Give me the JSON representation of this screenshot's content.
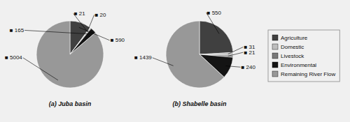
{
  "chart_data": [
    {
      "type": "pie",
      "title": "(a)  Juba basin",
      "values": [
        590,
        20,
        21,
        165,
        5004
      ],
      "value_labels": [
        "■ 590",
        "■ 20",
        "■ 21",
        "■ 165",
        "■ 5004"
      ],
      "colors": [
        "#404040",
        "#bebebe",
        "#787878",
        "#141414",
        "#989898"
      ],
      "data_labels": true
    },
    {
      "type": "pie",
      "title": "(b)  Shabelle basin",
      "categories": [
        "Agriculture",
        "Domestic",
        "Livestock",
        "Environmental",
        "Remaining River Flow"
      ],
      "values": [
        550,
        31,
        21,
        240,
        1439
      ],
      "value_labels": [
        "■ 550",
        "■ 31",
        "■ 21",
        "■ 240",
        "■ 1439"
      ],
      "colors": [
        "#404040",
        "#bebebe",
        "#787878",
        "#141414",
        "#989898"
      ],
      "data_labels": true,
      "legend": "right"
    }
  ]
}
